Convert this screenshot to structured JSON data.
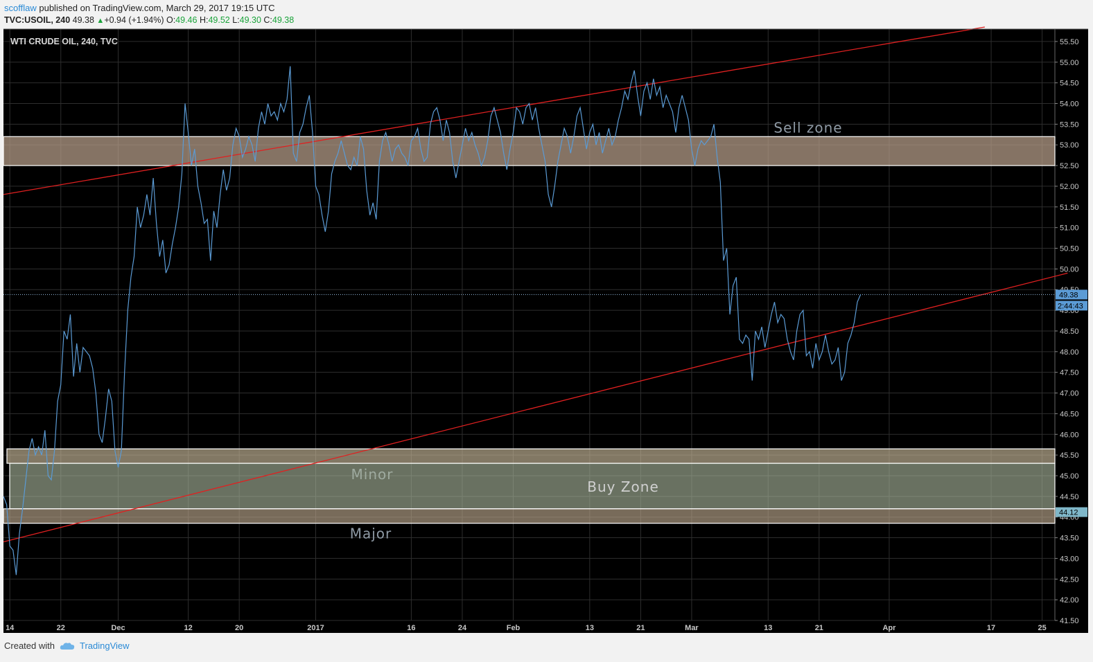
{
  "header": {
    "user": "scofflaw",
    "published_text": "published on TradingView.com, March 29, 2017 19:15 UTC",
    "symbol": "TVC:USOIL, 240",
    "last": "49.38",
    "change": "+0.94 (+1.94%)",
    "o_label": "O:",
    "o_value": "49.46",
    "h_label": "H:",
    "h_value": "49.52",
    "l_label": "L:",
    "l_value": "49.30",
    "c_label": "C:",
    "c_value": "49.38"
  },
  "footer": {
    "created_with": "Created with",
    "brand": "TradingView"
  },
  "chart_data": {
    "type": "line",
    "title": "WTI CRUDE OIL, 240, TVC",
    "ylim": [
      41.5,
      55.8
    ],
    "y_ticks": [
      "41.50",
      "42.00",
      "42.50",
      "43.00",
      "43.50",
      "44.00",
      "44.50",
      "45.00",
      "45.50",
      "46.00",
      "46.50",
      "47.00",
      "47.50",
      "48.00",
      "48.50",
      "49.00",
      "49.50",
      "50.00",
      "50.50",
      "51.00",
      "51.50",
      "52.00",
      "52.50",
      "53.00",
      "53.50",
      "54.00",
      "54.50",
      "55.00",
      "55.50"
    ],
    "x_ticks": [
      {
        "label": "14",
        "day": 0
      },
      {
        "label": "22",
        "day": 8
      },
      {
        "label": "Dec",
        "day": 17
      },
      {
        "label": "12",
        "day": 28
      },
      {
        "label": "20",
        "day": 36
      },
      {
        "label": "2017",
        "day": 48
      },
      {
        "label": "16",
        "day": 63
      },
      {
        "label": "24",
        "day": 71
      },
      {
        "label": "Feb",
        "day": 79
      },
      {
        "label": "13",
        "day": 91
      },
      {
        "label": "21",
        "day": 99
      },
      {
        "label": "Mar",
        "day": 107
      },
      {
        "label": "13",
        "day": 119
      },
      {
        "label": "21",
        "day": 127
      },
      {
        "label": "Apr",
        "day": 138
      },
      {
        "label": "17",
        "day": 154
      },
      {
        "label": "25",
        "day": 162
      }
    ],
    "x_range_days": [
      -1,
      164
    ],
    "x_axis_note": "day 0 = Nov 14, 2016",
    "grid": true,
    "last_price_label": "49.38",
    "countdown_label": "2:44:43",
    "price_label_2": "44.12",
    "price_label_2_value": 44.12,
    "line_color": "#5b9bd5",
    "trend_color": "#e02020",
    "series": [
      {
        "name": "",
        "points": [
          [
            -1,
            44.5
          ],
          [
            -0.5,
            44.3
          ],
          [
            0,
            43.3
          ],
          [
            0.5,
            43.2
          ],
          [
            1,
            42.6
          ],
          [
            1.5,
            43.6
          ],
          [
            2,
            44.2
          ],
          [
            2.5,
            44.9
          ],
          [
            3,
            45.6
          ],
          [
            3.5,
            45.9
          ],
          [
            4,
            45.5
          ],
          [
            4.5,
            45.7
          ],
          [
            5,
            45.5
          ],
          [
            5.5,
            46.1
          ],
          [
            6,
            45.0
          ],
          [
            6.5,
            44.9
          ],
          [
            7,
            45.6
          ],
          [
            7.5,
            46.8
          ],
          [
            8,
            47.2
          ],
          [
            8.5,
            48.5
          ],
          [
            9,
            48.3
          ],
          [
            9.5,
            48.9
          ],
          [
            10,
            47.4
          ],
          [
            10.5,
            48.2
          ],
          [
            11,
            47.5
          ],
          [
            11.5,
            48.1
          ],
          [
            12,
            48.0
          ],
          [
            12.5,
            47.9
          ],
          [
            13,
            47.6
          ],
          [
            13.5,
            47.0
          ],
          [
            14,
            46.0
          ],
          [
            14.5,
            45.8
          ],
          [
            15,
            46.4
          ],
          [
            15.5,
            47.1
          ],
          [
            16,
            46.8
          ],
          [
            16.5,
            45.6
          ],
          [
            17,
            45.2
          ],
          [
            17.5,
            45.6
          ],
          [
            18,
            47.5
          ],
          [
            18.5,
            49.0
          ],
          [
            19,
            49.8
          ],
          [
            19.5,
            50.3
          ],
          [
            20,
            51.5
          ],
          [
            20.5,
            51.0
          ],
          [
            21,
            51.3
          ],
          [
            21.5,
            51.8
          ],
          [
            22,
            51.3
          ],
          [
            22.5,
            52.2
          ],
          [
            23,
            51.1
          ],
          [
            23.5,
            50.3
          ],
          [
            24,
            50.7
          ],
          [
            24.5,
            49.9
          ],
          [
            25,
            50.1
          ],
          [
            25.5,
            50.6
          ],
          [
            26,
            51.0
          ],
          [
            26.5,
            51.5
          ],
          [
            27,
            52.3
          ],
          [
            27.5,
            54.0
          ],
          [
            28,
            53.3
          ],
          [
            28.5,
            52.5
          ],
          [
            29,
            52.9
          ],
          [
            29.5,
            52.0
          ],
          [
            30,
            51.6
          ],
          [
            30.5,
            51.1
          ],
          [
            31,
            51.2
          ],
          [
            31.5,
            50.2
          ],
          [
            32,
            51.4
          ],
          [
            32.5,
            51.0
          ],
          [
            33,
            51.8
          ],
          [
            33.5,
            52.4
          ],
          [
            34,
            51.9
          ],
          [
            34.5,
            52.2
          ],
          [
            35,
            53.0
          ],
          [
            35.5,
            53.4
          ],
          [
            36,
            53.2
          ],
          [
            36.5,
            52.7
          ],
          [
            37,
            52.9
          ],
          [
            37.5,
            53.2
          ],
          [
            38,
            53.0
          ],
          [
            38.5,
            52.6
          ],
          [
            39,
            53.4
          ],
          [
            39.5,
            53.8
          ],
          [
            40,
            53.5
          ],
          [
            40.5,
            54.0
          ],
          [
            41,
            53.7
          ],
          [
            41.5,
            53.8
          ],
          [
            42,
            53.6
          ],
          [
            42.5,
            54.0
          ],
          [
            43,
            53.8
          ],
          [
            43.5,
            54.1
          ],
          [
            44,
            54.9
          ],
          [
            44.5,
            52.8
          ],
          [
            45,
            52.6
          ],
          [
            45.5,
            53.3
          ],
          [
            46,
            53.5
          ],
          [
            46.5,
            53.9
          ],
          [
            47,
            54.2
          ],
          [
            47.5,
            53.3
          ],
          [
            48,
            52.0
          ],
          [
            48.5,
            51.8
          ],
          [
            49,
            51.3
          ],
          [
            49.5,
            50.9
          ],
          [
            50,
            51.4
          ],
          [
            50.5,
            52.3
          ],
          [
            51,
            52.6
          ],
          [
            51.5,
            52.8
          ],
          [
            52,
            53.1
          ],
          [
            52.5,
            52.8
          ],
          [
            53,
            52.5
          ],
          [
            53.5,
            52.4
          ],
          [
            54,
            52.7
          ],
          [
            54.5,
            52.5
          ],
          [
            55,
            53.2
          ],
          [
            55.5,
            52.9
          ],
          [
            56,
            51.9
          ],
          [
            56.5,
            51.3
          ],
          [
            57,
            51.6
          ],
          [
            57.5,
            51.2
          ],
          [
            58,
            52.6
          ],
          [
            58.5,
            53.1
          ],
          [
            59,
            53.3
          ],
          [
            59.5,
            53.0
          ],
          [
            60,
            52.6
          ],
          [
            60.5,
            52.9
          ],
          [
            61,
            53.0
          ],
          [
            61.5,
            52.8
          ],
          [
            62,
            52.7
          ],
          [
            62.5,
            52.5
          ],
          [
            63,
            53.1
          ],
          [
            63.5,
            53.2
          ],
          [
            64,
            53.4
          ],
          [
            64.5,
            52.9
          ],
          [
            65,
            52.6
          ],
          [
            65.5,
            52.7
          ],
          [
            66,
            53.5
          ],
          [
            66.5,
            53.8
          ],
          [
            67,
            53.9
          ],
          [
            67.5,
            53.6
          ],
          [
            68,
            53.1
          ],
          [
            68.5,
            53.6
          ],
          [
            69,
            53.3
          ],
          [
            69.5,
            52.6
          ],
          [
            70,
            52.2
          ],
          [
            70.5,
            52.6
          ],
          [
            71,
            53.0
          ],
          [
            71.5,
            53.4
          ],
          [
            72,
            53.1
          ],
          [
            72.5,
            53.3
          ],
          [
            73,
            53.0
          ],
          [
            73.5,
            52.8
          ],
          [
            74,
            52.5
          ],
          [
            74.5,
            52.7
          ],
          [
            75,
            53.1
          ],
          [
            75.5,
            53.7
          ],
          [
            76,
            53.9
          ],
          [
            76.5,
            53.6
          ],
          [
            77,
            53.3
          ],
          [
            77.5,
            52.8
          ],
          [
            78,
            52.4
          ],
          [
            78.5,
            52.9
          ],
          [
            79,
            53.3
          ],
          [
            79.5,
            53.9
          ],
          [
            80,
            53.8
          ],
          [
            80.5,
            53.5
          ],
          [
            81,
            53.9
          ],
          [
            81.5,
            54.0
          ],
          [
            82,
            53.6
          ],
          [
            82.5,
            53.9
          ],
          [
            83,
            53.4
          ],
          [
            83.5,
            53.0
          ],
          [
            84,
            52.6
          ],
          [
            84.5,
            51.8
          ],
          [
            85,
            51.5
          ],
          [
            85.5,
            52.0
          ],
          [
            86,
            52.6
          ],
          [
            86.5,
            53.0
          ],
          [
            87,
            53.4
          ],
          [
            87.5,
            53.2
          ],
          [
            88,
            52.8
          ],
          [
            88.5,
            53.2
          ],
          [
            89,
            53.7
          ],
          [
            89.5,
            53.9
          ],
          [
            90,
            53.4
          ],
          [
            90.5,
            52.9
          ],
          [
            91,
            53.3
          ],
          [
            91.5,
            53.5
          ],
          [
            92,
            53.0
          ],
          [
            92.5,
            53.3
          ],
          [
            93,
            52.8
          ],
          [
            93.5,
            53.1
          ],
          [
            94,
            53.4
          ],
          [
            94.5,
            53.0
          ],
          [
            95,
            53.2
          ],
          [
            95.5,
            53.6
          ],
          [
            96,
            53.9
          ],
          [
            96.5,
            54.3
          ],
          [
            97,
            54.1
          ],
          [
            97.5,
            54.5
          ],
          [
            98,
            54.8
          ],
          [
            98.5,
            54.2
          ],
          [
            99,
            53.7
          ],
          [
            99.5,
            54.3
          ],
          [
            100,
            54.5
          ],
          [
            100.5,
            54.1
          ],
          [
            101,
            54.6
          ],
          [
            101.5,
            54.2
          ],
          [
            102,
            54.4
          ],
          [
            102.5,
            53.9
          ],
          [
            103,
            54.2
          ],
          [
            103.5,
            54.0
          ],
          [
            104,
            53.8
          ],
          [
            104.5,
            53.3
          ],
          [
            105,
            53.9
          ],
          [
            105.5,
            54.2
          ],
          [
            106,
            53.9
          ],
          [
            106.5,
            53.6
          ],
          [
            107,
            52.9
          ],
          [
            107.5,
            52.5
          ],
          [
            108,
            52.9
          ],
          [
            108.5,
            53.1
          ],
          [
            109,
            53.0
          ],
          [
            109.5,
            53.1
          ],
          [
            110,
            53.2
          ],
          [
            110.5,
            53.5
          ],
          [
            111,
            52.7
          ],
          [
            111.5,
            52.1
          ],
          [
            112,
            50.2
          ],
          [
            112.5,
            50.5
          ],
          [
            113,
            48.9
          ],
          [
            113.5,
            49.6
          ],
          [
            114,
            49.8
          ],
          [
            114.5,
            48.3
          ],
          [
            115,
            48.2
          ],
          [
            115.5,
            48.4
          ],
          [
            116,
            48.3
          ],
          [
            116.5,
            47.3
          ],
          [
            117,
            48.5
          ],
          [
            117.5,
            48.3
          ],
          [
            118,
            48.6
          ],
          [
            118.5,
            48.1
          ],
          [
            119,
            48.5
          ],
          [
            119.5,
            48.9
          ],
          [
            120,
            49.2
          ],
          [
            120.5,
            48.7
          ],
          [
            121,
            48.9
          ],
          [
            121.5,
            48.8
          ],
          [
            122,
            48.3
          ],
          [
            122.5,
            48.0
          ],
          [
            123,
            47.8
          ],
          [
            123.5,
            48.5
          ],
          [
            124,
            48.9
          ],
          [
            124.5,
            49.0
          ],
          [
            125,
            47.9
          ],
          [
            125.5,
            48.0
          ],
          [
            126,
            47.6
          ],
          [
            126.5,
            48.2
          ],
          [
            127,
            47.8
          ],
          [
            127.5,
            48.0
          ],
          [
            128,
            48.4
          ],
          [
            128.5,
            48.0
          ],
          [
            129,
            47.7
          ],
          [
            129.5,
            47.8
          ],
          [
            130,
            48.1
          ],
          [
            130.5,
            47.3
          ],
          [
            131,
            47.5
          ],
          [
            131.5,
            48.2
          ],
          [
            132,
            48.4
          ],
          [
            132.5,
            48.7
          ],
          [
            133,
            49.2
          ],
          [
            133.5,
            49.38
          ]
        ]
      }
    ],
    "trendlines": [
      {
        "from": [
          -1,
          51.8
        ],
        "to": [
          153,
          55.85
        ]
      },
      {
        "from": [
          -1,
          43.4
        ],
        "to": [
          166,
          49.9
        ]
      }
    ],
    "zones": [
      {
        "label": "Sell zone",
        "y_bottom": 52.5,
        "y_top": 53.2
      },
      {
        "label": "Minor",
        "y_bottom": 45.3,
        "y_top": 45.65
      },
      {
        "label": "Buy Zone",
        "y_bottom": 44.2,
        "y_top": 45.3
      },
      {
        "label": "Major",
        "y_bottom": 43.85,
        "y_top": 44.2
      }
    ]
  }
}
